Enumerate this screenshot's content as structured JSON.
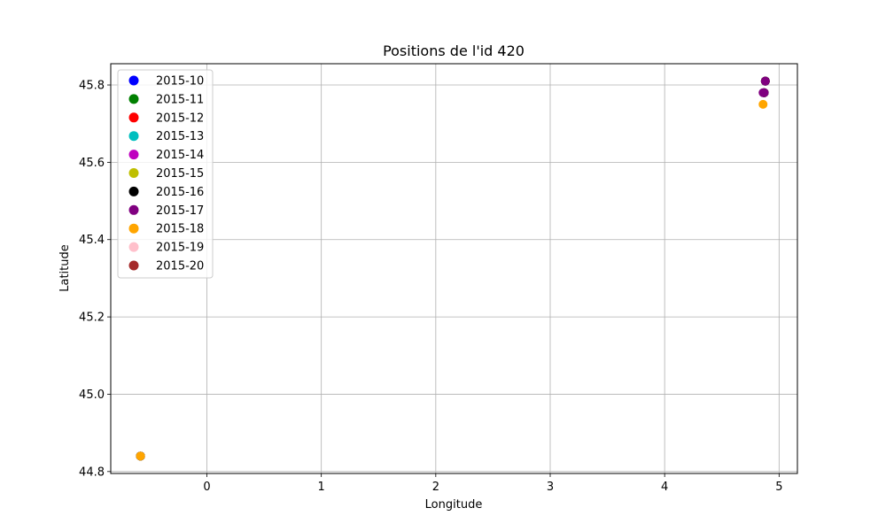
{
  "chart_data": {
    "type": "scatter",
    "title": "Positions de l'id 420",
    "xlabel": "Longitude",
    "ylabel": "Latitude",
    "xlim": [
      -0.84,
      5.16
    ],
    "ylim": [
      44.795,
      45.855
    ],
    "xticks": [
      0,
      1,
      2,
      3,
      4,
      5
    ],
    "yticks": [
      44.8,
      45.0,
      45.2,
      45.4,
      45.6,
      45.8
    ],
    "ytick_labels": [
      "44.8",
      "45.0",
      "45.2",
      "45.4",
      "45.6",
      "45.8"
    ],
    "grid": true,
    "legend_position": "top-left",
    "series": [
      {
        "name": "2015-10",
        "color": "#0000ff",
        "points": [
          [
            4.87,
            45.78
          ],
          [
            4.88,
            45.81
          ],
          [
            -0.58,
            44.84
          ]
        ]
      },
      {
        "name": "2015-11",
        "color": "#008000",
        "points": [
          [
            4.87,
            45.78
          ],
          [
            4.88,
            45.81
          ],
          [
            -0.58,
            44.84
          ]
        ]
      },
      {
        "name": "2015-12",
        "color": "#ff0000",
        "points": [
          [
            4.87,
            45.78
          ],
          [
            4.88,
            45.81
          ],
          [
            -0.58,
            44.84
          ]
        ]
      },
      {
        "name": "2015-13",
        "color": "#00bfbf",
        "points": [
          [
            4.87,
            45.78
          ],
          [
            4.88,
            45.81
          ],
          [
            -0.58,
            44.84
          ]
        ]
      },
      {
        "name": "2015-14",
        "color": "#bf00bf",
        "points": [
          [
            4.87,
            45.78
          ],
          [
            4.88,
            45.81
          ],
          [
            -0.58,
            44.84
          ]
        ]
      },
      {
        "name": "2015-15",
        "color": "#bfbf00",
        "points": [
          [
            4.87,
            45.78
          ],
          [
            4.88,
            45.81
          ],
          [
            -0.58,
            44.84
          ]
        ]
      },
      {
        "name": "2015-16",
        "color": "#000000",
        "points": [
          [
            4.87,
            45.78
          ],
          [
            4.88,
            45.81
          ],
          [
            -0.58,
            44.84
          ]
        ]
      },
      {
        "name": "2015-17",
        "color": "#800080",
        "points": [
          [
            4.87,
            45.78
          ],
          [
            4.88,
            45.81
          ],
          [
            4.86,
            45.78
          ]
        ]
      },
      {
        "name": "2015-18",
        "color": "#ffa500",
        "points": [
          [
            4.86,
            45.75
          ],
          [
            -0.58,
            44.84
          ]
        ]
      },
      {
        "name": "2015-19",
        "color": "#ffc0cb",
        "points": []
      },
      {
        "name": "2015-20",
        "color": "#a52a2a",
        "points": []
      }
    ]
  }
}
